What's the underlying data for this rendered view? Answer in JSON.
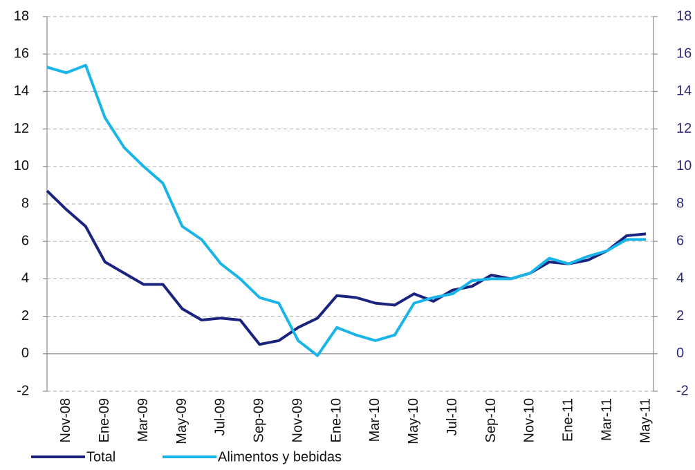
{
  "chart_data": {
    "type": "line",
    "categories": [
      null,
      "Nov-08",
      null,
      "Ene-09",
      null,
      "Mar-09",
      null,
      "May-09",
      null,
      "Jul-09",
      null,
      "Sep-09",
      null,
      "Nov-09",
      null,
      "Ene-10",
      null,
      "Mar-10",
      null,
      "May-10",
      null,
      "Jul-10",
      null,
      "Sep-10",
      null,
      "Nov-10",
      null,
      "Ene-11",
      null,
      "Mar-11",
      null,
      "May-11"
    ],
    "series": [
      {
        "name": "Total",
        "color": "#1a237e",
        "values": [
          8.7,
          7.7,
          6.8,
          4.9,
          4.3,
          3.7,
          3.7,
          2.4,
          1.8,
          1.9,
          1.8,
          0.5,
          0.7,
          1.4,
          1.9,
          3.1,
          3.0,
          2.7,
          2.6,
          3.2,
          2.8,
          3.4,
          3.6,
          4.2,
          4.0,
          4.3,
          4.9,
          4.8,
          5.0,
          5.5,
          6.3,
          6.4
        ]
      },
      {
        "name": "Alimentos y bebidas",
        "color": "#19b5e8",
        "values": [
          15.3,
          15.0,
          15.4,
          12.6,
          11.0,
          10.0,
          9.1,
          6.8,
          6.1,
          4.8,
          4.0,
          3.0,
          2.7,
          0.7,
          -0.1,
          1.4,
          1.0,
          0.7,
          1.0,
          2.7,
          3.0,
          3.2,
          3.9,
          4.0,
          4.0,
          4.3,
          5.1,
          4.8,
          5.2,
          5.5,
          6.1,
          6.1
        ]
      }
    ],
    "ylim": [
      -2,
      18
    ],
    "yticks": [
      -2,
      0,
      2,
      4,
      6,
      8,
      10,
      12,
      14,
      16,
      18
    ],
    "y2lim": [
      -2,
      18
    ],
    "y2ticks": [
      -2,
      0,
      2,
      4,
      6,
      8,
      10,
      12,
      14,
      16,
      18
    ],
    "y2_color": "#2e2a7a",
    "grid": true,
    "legend": "bottom"
  }
}
